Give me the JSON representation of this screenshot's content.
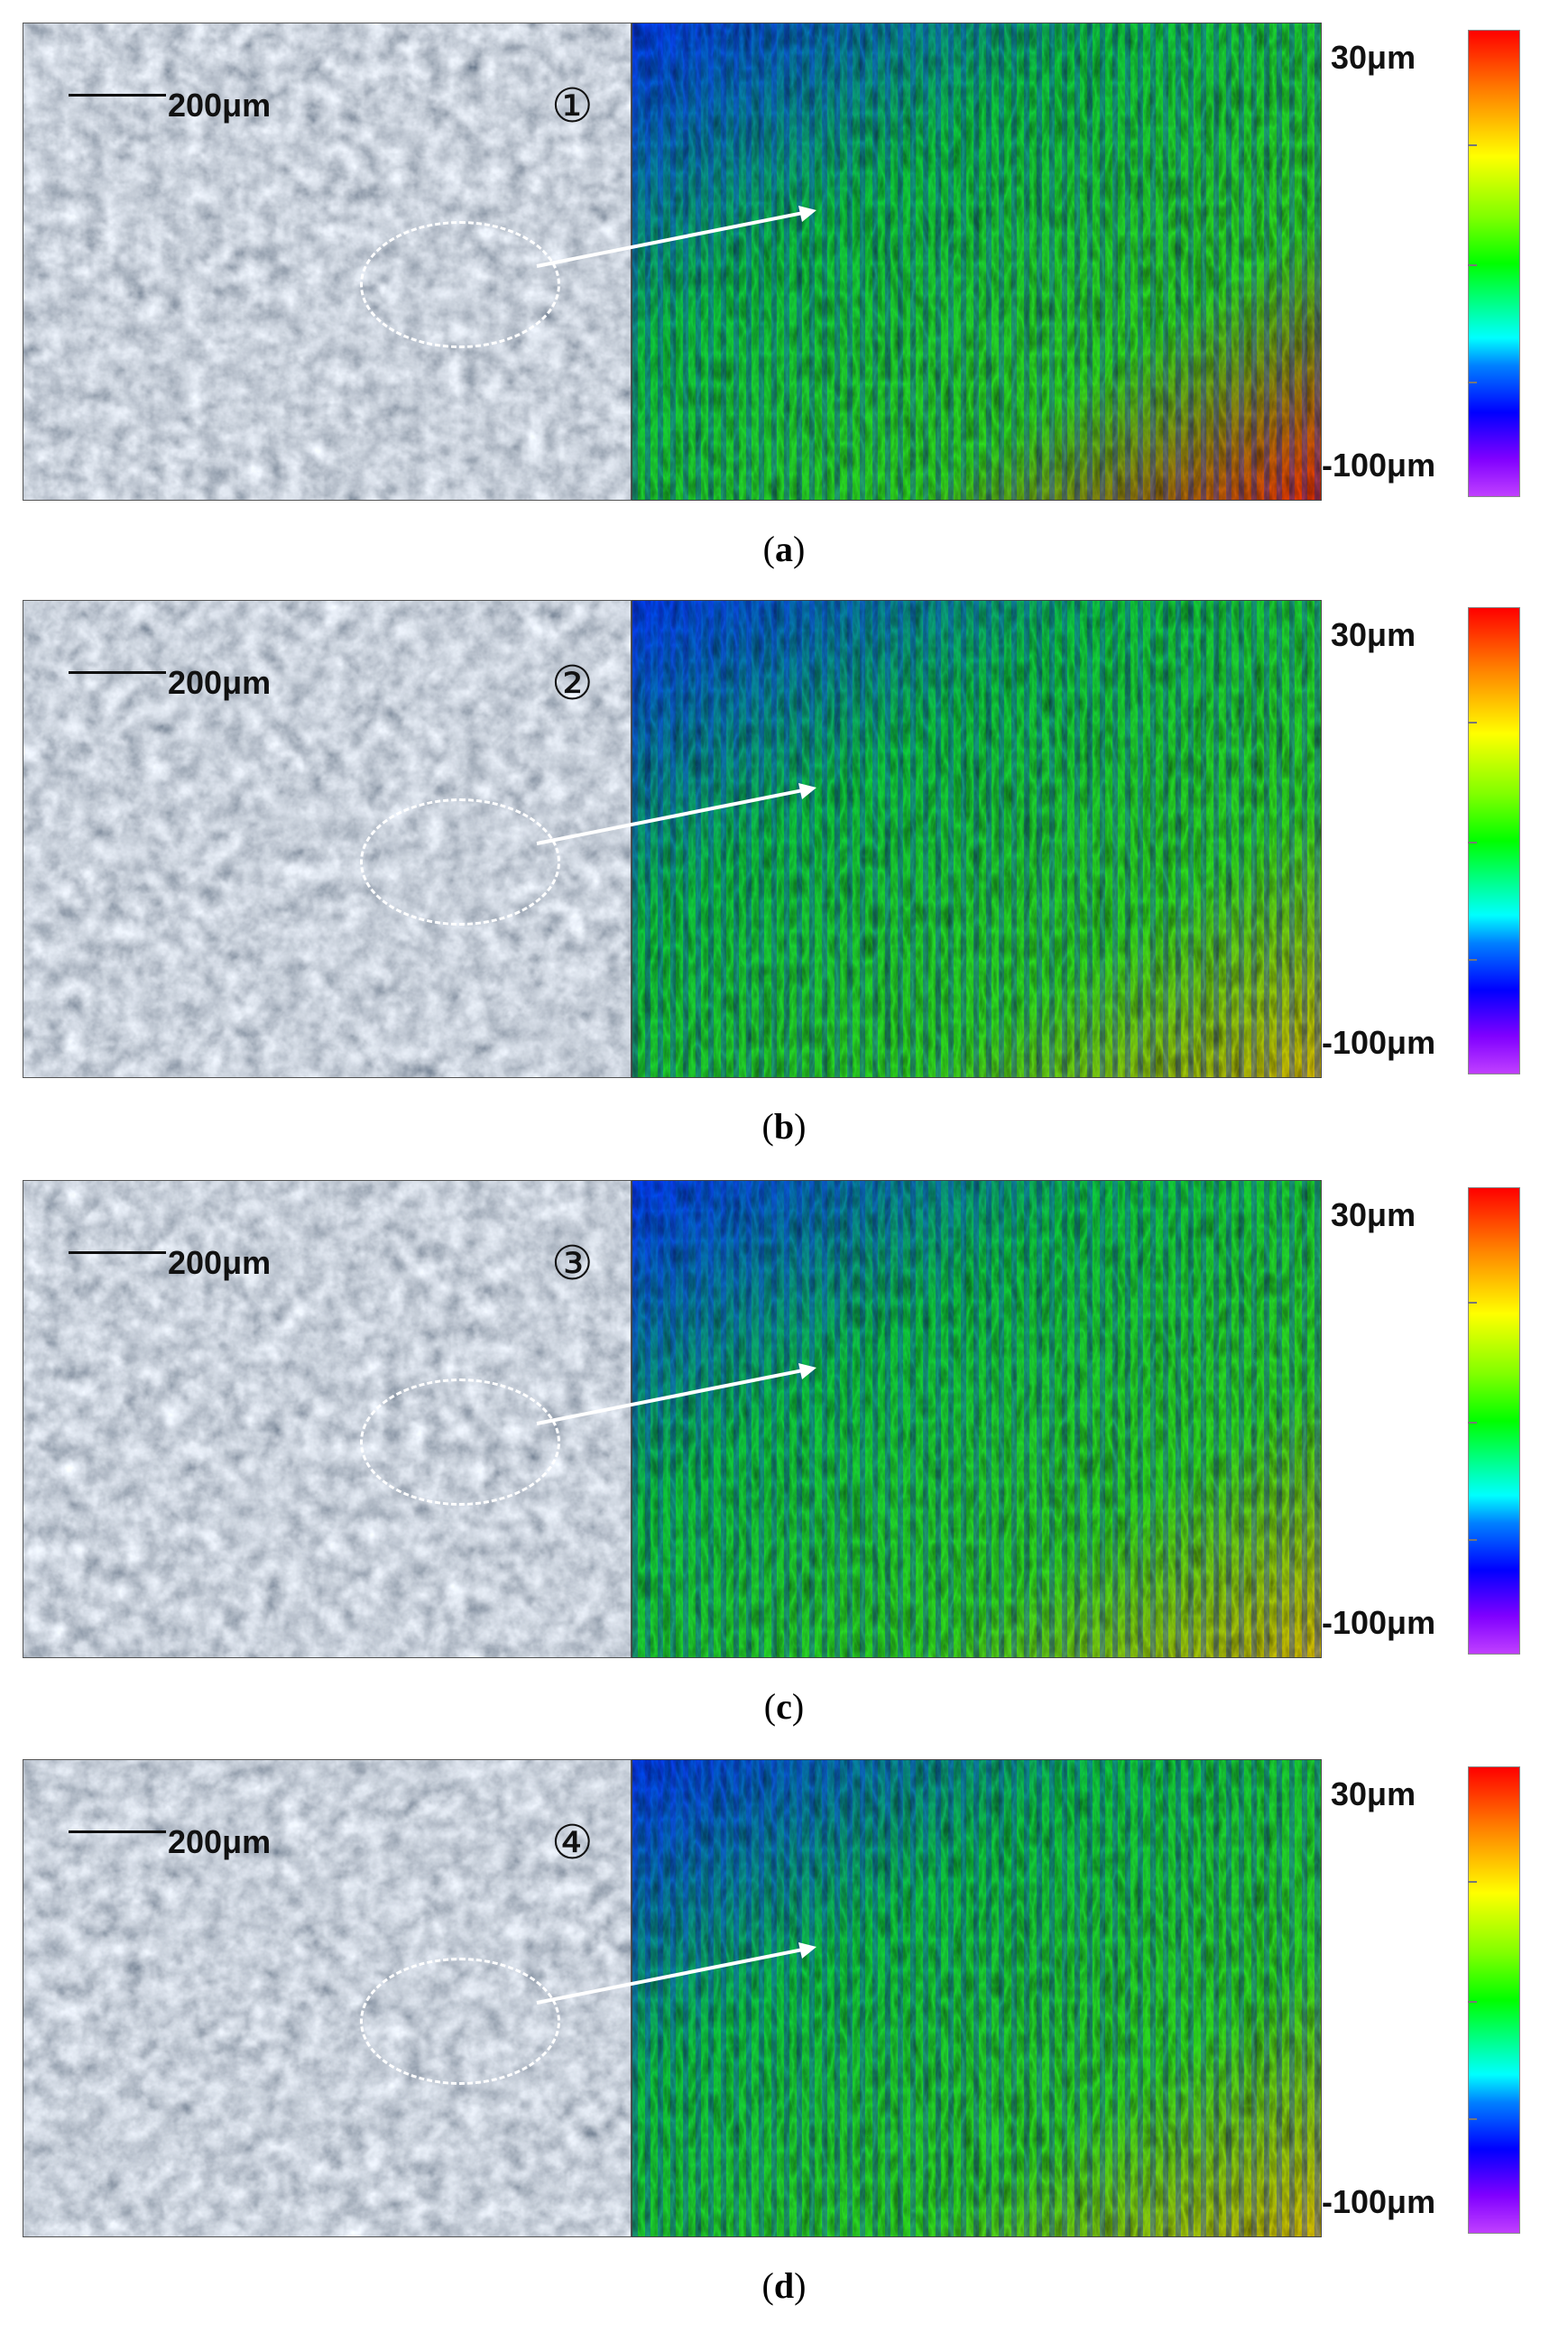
{
  "panels": [
    {
      "marker": "①",
      "scale_label": "200μm",
      "legend_max": "30μm",
      "legend_min": "-100μm",
      "caption_letter": "a"
    },
    {
      "marker": "②",
      "scale_label": "200μm",
      "legend_max": "30μm",
      "legend_min": "-100μm",
      "caption_letter": "b"
    },
    {
      "marker": "③",
      "scale_label": "200μm",
      "legend_max": "30μm",
      "legend_min": "-100μm",
      "caption_letter": "c"
    },
    {
      "marker": "④",
      "scale_label": "200μm",
      "legend_max": "30μm",
      "legend_min": "-100μm",
      "caption_letter": "d"
    }
  ],
  "colors": {
    "colormap": [
      "#ff0000",
      "#ff8000",
      "#ffff00",
      "#80ff00",
      "#00ff00",
      "#00ffff",
      "#0080ff",
      "#0000ff",
      "#8000ff"
    ],
    "photo_base": "#7f8893",
    "annotation": "#ffffff"
  }
}
